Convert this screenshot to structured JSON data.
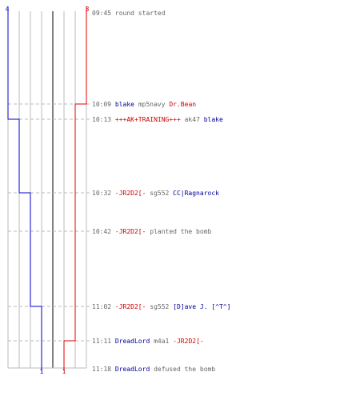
{
  "colors": {
    "team_blue": "#0000cc",
    "team_red": "#dd0000",
    "grid": "#bbbbbb",
    "center_line": "#808080",
    "dash": "#bbbbbb"
  },
  "scores": {
    "blue_start": "4",
    "red_start": "3",
    "blue_end": "1",
    "red_end": "1"
  },
  "events": [
    {
      "time": "09:45",
      "parts": [
        {
          "text": "round started",
          "color": "gray"
        }
      ]
    },
    {
      "time": "10:09",
      "parts": [
        {
          "text": "blake",
          "color": "blue"
        },
        {
          "text": " mp5navy ",
          "color": "gray"
        },
        {
          "text": "Dr.Bean",
          "color": "red"
        }
      ]
    },
    {
      "time": "10:13",
      "parts": [
        {
          "text": "+++AK+TRAINING+++",
          "color": "red"
        },
        {
          "text": " ak47 ",
          "color": "gray"
        },
        {
          "text": "blake",
          "color": "blue"
        }
      ]
    },
    {
      "time": "10:32",
      "parts": [
        {
          "text": "-JR2D2[-",
          "color": "red"
        },
        {
          "text": " sg552 ",
          "color": "gray"
        },
        {
          "text": "CC|Ragnarock",
          "color": "blue"
        }
      ]
    },
    {
      "time": "10:42",
      "parts": [
        {
          "text": "-JR2D2[-",
          "color": "red"
        },
        {
          "text": " planted the bomb",
          "color": "gray"
        }
      ]
    },
    {
      "time": "11:02",
      "parts": [
        {
          "text": "-JR2D2[-",
          "color": "red"
        },
        {
          "text": " sg552 ",
          "color": "gray"
        },
        {
          "text": "[D]ave J. [^T^]",
          "color": "blue"
        }
      ]
    },
    {
      "time": "11:11",
      "parts": [
        {
          "text": "DreadLord",
          "color": "blue"
        },
        {
          "text": " m4a1 ",
          "color": "gray"
        },
        {
          "text": "-JR2D2[-",
          "color": "red"
        }
      ]
    },
    {
      "time": "11:18",
      "parts": [
        {
          "text": "DreadLord",
          "color": "blue"
        },
        {
          "text": " defused the bomb",
          "color": "gray"
        }
      ]
    }
  ]
}
